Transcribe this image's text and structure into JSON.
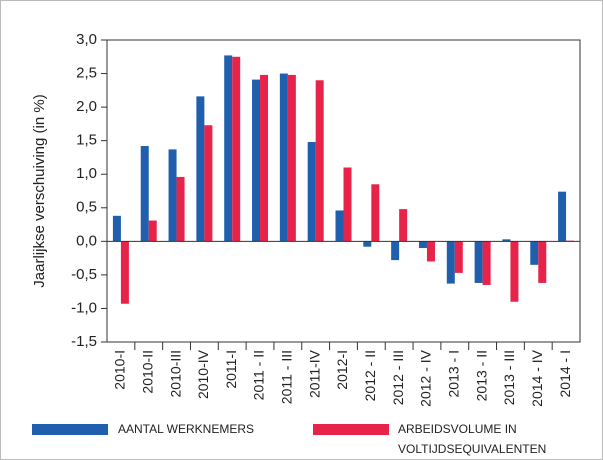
{
  "chart_data": {
    "type": "bar",
    "y_label": "Jaarlijkse verschuiving (in %)",
    "categories": [
      "2010-I",
      "2010-II",
      "2010-III",
      "2010-IV",
      "2011-I",
      "2011 - II",
      "2011 - III",
      "2011-IV",
      "2012-I",
      "2012 - II",
      "2012 - III",
      "2012 - IV",
      "2013 - I",
      "2013 - II",
      "2013 - III",
      "2014 - IV",
      "2014 - I"
    ],
    "series": [
      {
        "name": "AANTAL WERKNEMERS",
        "color": "#1f5fad",
        "values": [
          0.38,
          1.42,
          1.37,
          2.16,
          2.77,
          2.41,
          2.5,
          1.48,
          0.46,
          -0.08,
          -0.28,
          -0.1,
          -0.63,
          -0.62,
          0.03,
          -0.35,
          0.74
        ]
      },
      {
        "name": "ARBEIDSVOLUME IN VOLTIJDSEQUIVALENTEN",
        "color": "#e8234a",
        "values": [
          -0.93,
          0.31,
          0.96,
          1.73,
          2.75,
          2.48,
          2.48,
          2.4,
          1.1,
          0.85,
          0.48,
          -0.3,
          -0.47,
          -0.65,
          -0.9,
          -0.62,
          0.01
        ]
      }
    ],
    "ylim": [
      -1.5,
      3.0
    ],
    "yticks": [
      {
        "value": -1.5,
        "label": "-1,5"
      },
      {
        "value": -1.0,
        "label": "-1,0"
      },
      {
        "value": -0.5,
        "label": "-0,5"
      },
      {
        "value": 0,
        "label": "0,0"
      },
      {
        "value": 0.5,
        "label": "0,5"
      },
      {
        "value": 1.0,
        "label": "1,0"
      },
      {
        "value": 1.5,
        "label": "1,5"
      },
      {
        "value": 2.0,
        "label": "2,0"
      },
      {
        "value": 2.5,
        "label": "2,5"
      },
      {
        "value": 3.0,
        "label": "3,0"
      }
    ]
  }
}
